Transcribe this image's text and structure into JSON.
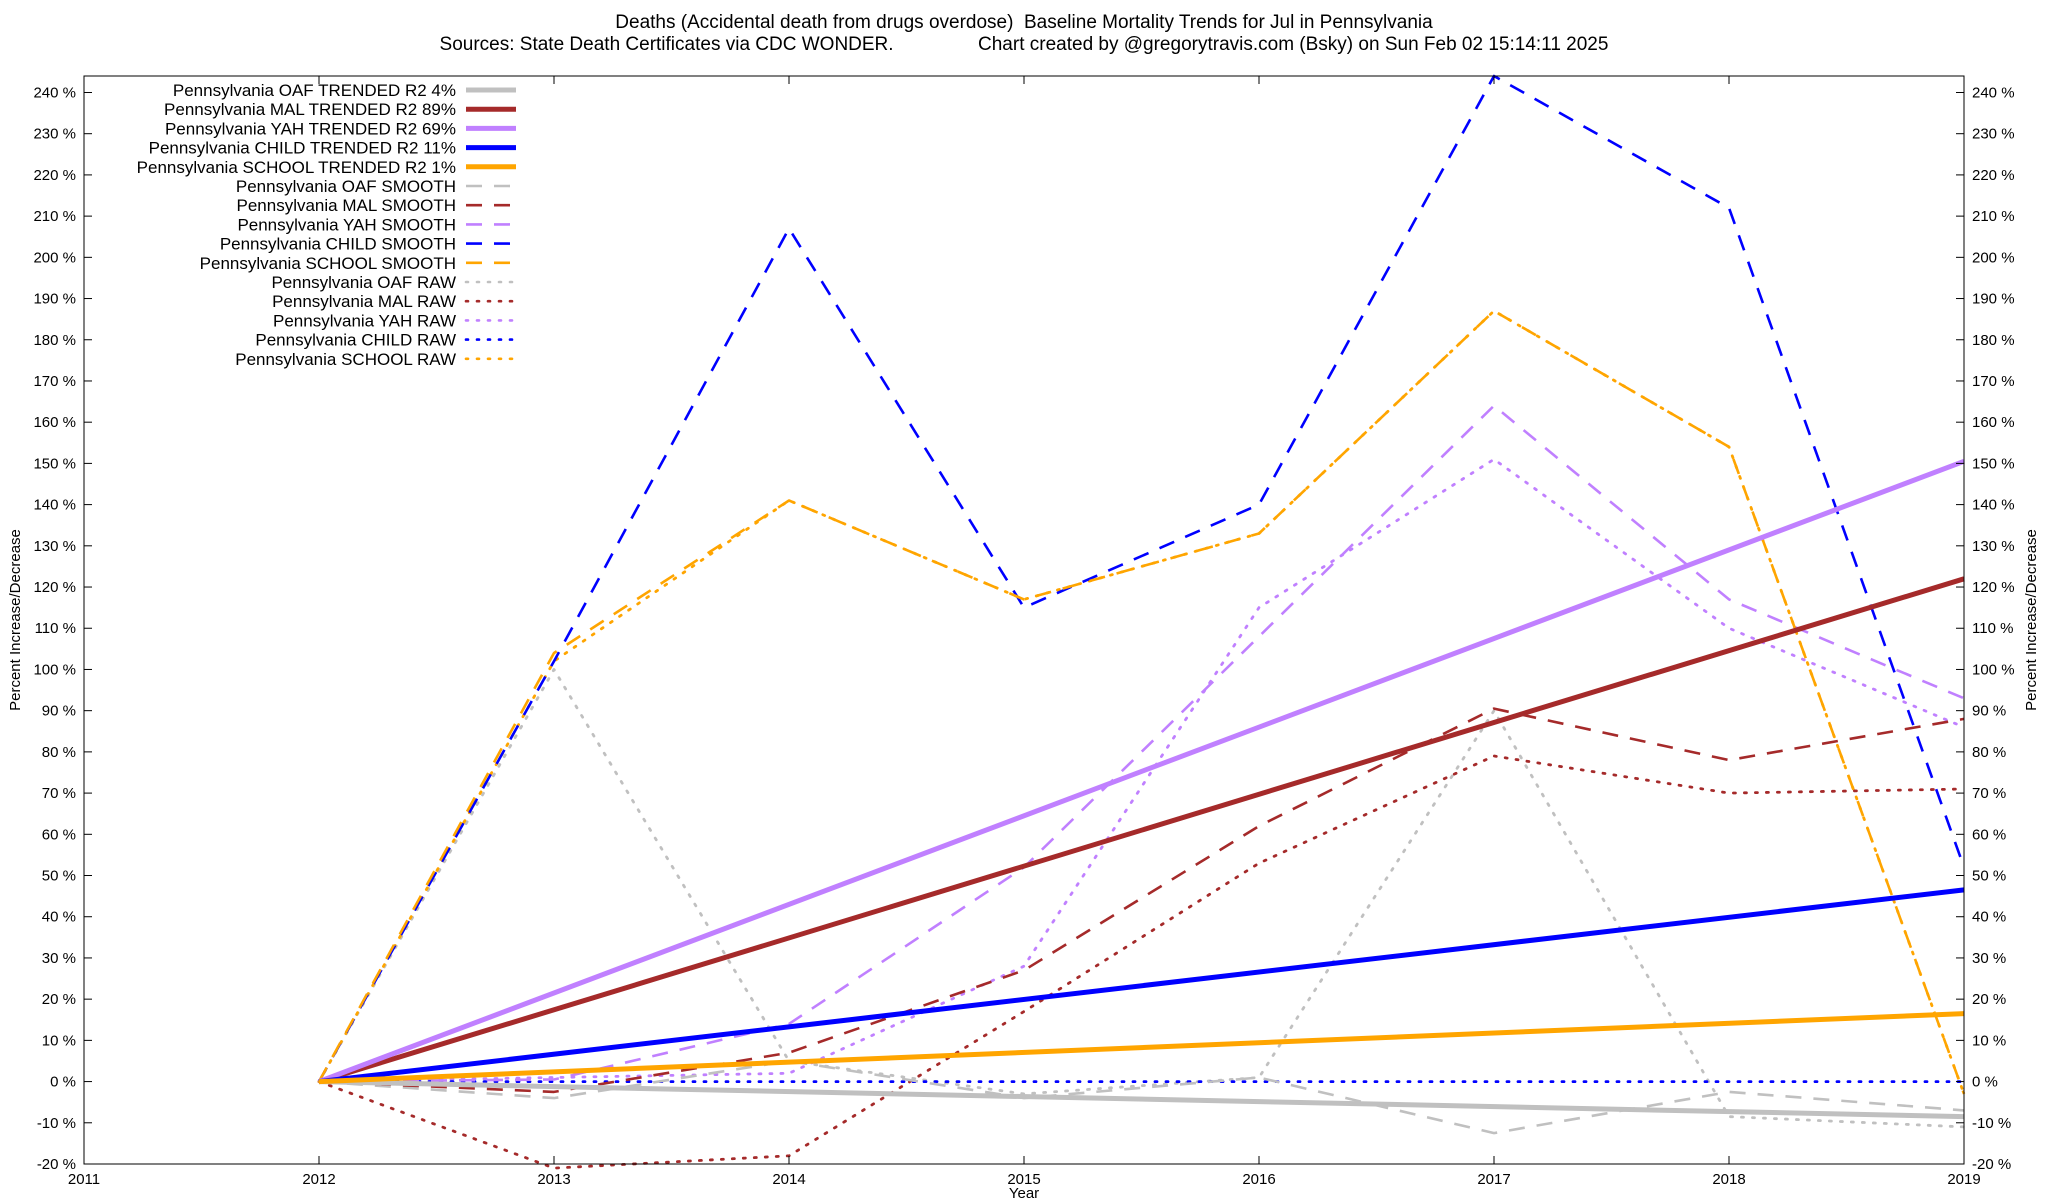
{
  "chart_data": {
    "type": "line",
    "title": "Deaths (Accidental death from drugs overdose)  Baseline Mortality Trends for Jul in Pennsylvania",
    "subtitle": "Sources: State Death Certificates via CDC WONDER.                Chart created by @gregorytravis.com (Bsky) on Sun Feb 02 15:14:11 2025",
    "xlabel": "Year",
    "ylabel": "Percent Increase/Decrease",
    "y2label": "Percent Increase/Decrease",
    "xlim": [
      2011,
      2019
    ],
    "ylim": [
      -20,
      244
    ],
    "x_ticks": [
      "2011",
      "2012",
      "2013",
      "2014",
      "2015",
      "2016",
      "2017",
      "2018",
      "2019"
    ],
    "y_ticks": [
      "-20 %",
      "-10 %",
      "0 %",
      "10 %",
      "20 %",
      "30 %",
      "40 %",
      "50 %",
      "60 %",
      "70 %",
      "80 %",
      "90 %",
      "100 %",
      "110 %",
      "120 %",
      "130 %",
      "140 %",
      "150 %",
      "160 %",
      "170 %",
      "180 %",
      "190 %",
      "200 %",
      "210 %",
      "220 %",
      "230 %",
      "240 %"
    ],
    "grid": false,
    "legend_position": "top-left",
    "series": [
      {
        "name": "Pennsylvania OAF TRENDED R2  4%",
        "color": "#c0c0c0",
        "style": "solid",
        "x": [
          2012,
          2019
        ],
        "y": [
          0,
          -8.5
        ]
      },
      {
        "name": "Pennsylvania MAL TRENDED R2  89%",
        "color": "#a52a2a",
        "style": "solid",
        "x": [
          2012,
          2019
        ],
        "y": [
          0,
          122
        ]
      },
      {
        "name": "Pennsylvania YAH TRENDED R2  69%",
        "color": "#c080ff",
        "style": "solid",
        "x": [
          2012,
          2019
        ],
        "y": [
          0,
          150.5
        ]
      },
      {
        "name": "Pennsylvania CHILD TRENDED R2  11%",
        "color": "#0000ff",
        "style": "solid",
        "x": [
          2012,
          2019
        ],
        "y": [
          0,
          46.5
        ]
      },
      {
        "name": "Pennsylvania SCHOOL TRENDED R2  1%",
        "color": "#ffa500",
        "style": "solid",
        "x": [
          2012,
          2019
        ],
        "y": [
          0,
          16.5
        ]
      },
      {
        "name": "Pennsylvania OAF SMOOTH",
        "color": "#c0c0c0",
        "style": "dashed",
        "x": [
          2012,
          2013,
          2014,
          2015,
          2016,
          2017,
          2018,
          2019
        ],
        "y": [
          0,
          -4,
          5,
          -4,
          1,
          -12.5,
          -2.5,
          -7
        ]
      },
      {
        "name": "Pennsylvania MAL SMOOTH",
        "color": "#a52a2a",
        "style": "dashed",
        "x": [
          2012,
          2013,
          2014,
          2015,
          2016,
          2017,
          2018,
          2019
        ],
        "y": [
          0,
          -2.5,
          7,
          27,
          62,
          90.5,
          78,
          88
        ]
      },
      {
        "name": "Pennsylvania YAH SMOOTH",
        "color": "#c080ff",
        "style": "dashed",
        "x": [
          2012,
          2013,
          2014,
          2015,
          2016,
          2017,
          2018,
          2019
        ],
        "y": [
          0,
          0.5,
          14,
          52,
          108,
          164,
          117,
          93
        ]
      },
      {
        "name": "Pennsylvania CHILD SMOOTH",
        "color": "#0000ff",
        "style": "dashed",
        "x": [
          2012,
          2013,
          2014,
          2015,
          2016,
          2017,
          2018,
          2019
        ],
        "y": [
          0,
          102,
          207,
          115,
          140,
          244,
          212,
          52
        ]
      },
      {
        "name": "Pennsylvania SCHOOL SMOOTH",
        "color": "#ffa500",
        "style": "dashed",
        "x": [
          2012,
          2013,
          2014,
          2015,
          2016,
          2017,
          2018,
          2019
        ],
        "y": [
          0,
          104,
          141,
          117,
          133,
          187,
          154,
          -3
        ]
      },
      {
        "name": "Pennsylvania OAF RAW",
        "color": "#c0c0c0",
        "style": "dotted",
        "x": [
          2012,
          2013,
          2014,
          2015,
          2016,
          2017,
          2018,
          2019
        ],
        "y": [
          0,
          100,
          5,
          -3,
          1,
          90,
          -8.5,
          -11
        ]
      },
      {
        "name": "Pennsylvania MAL RAW",
        "color": "#a52a2a",
        "style": "dotted",
        "x": [
          2012,
          2013,
          2014,
          2015,
          2016,
          2017,
          2018,
          2019
        ],
        "y": [
          0,
          -21,
          -18,
          17,
          53,
          79,
          70,
          71
        ]
      },
      {
        "name": "Pennsylvania YAH RAW",
        "color": "#c080ff",
        "style": "dotted",
        "x": [
          2012,
          2013,
          2014,
          2015,
          2016,
          2017,
          2018,
          2019
        ],
        "y": [
          0,
          1,
          2,
          28,
          115,
          151,
          110,
          86
        ]
      },
      {
        "name": "Pennsylvania CHILD RAW",
        "color": "#0000ff",
        "style": "dotted",
        "x": [
          2012,
          2013,
          2014,
          2015,
          2016,
          2017,
          2018,
          2019
        ],
        "y": [
          0,
          0,
          0,
          0,
          0,
          0,
          0,
          0
        ]
      },
      {
        "name": "Pennsylvania SCHOOL RAW",
        "color": "#ffa500",
        "style": "dotted",
        "x": [
          2012,
          2013,
          2014,
          2015,
          2016,
          2017,
          2018,
          2019
        ],
        "y": [
          0,
          102,
          141,
          117,
          133,
          187,
          154,
          -3
        ]
      }
    ]
  }
}
